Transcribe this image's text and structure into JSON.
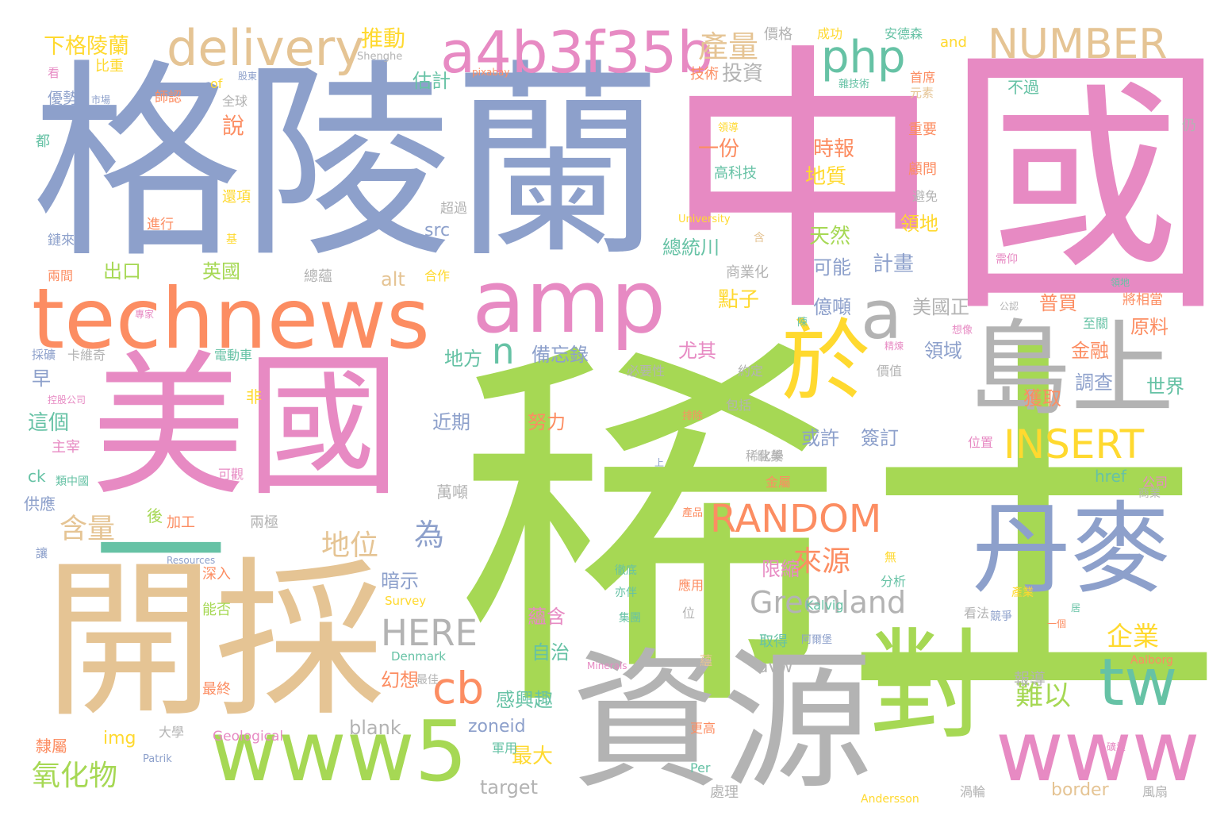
{
  "colors": {
    "green": "#a6d854",
    "pink": "#e78ac3",
    "blue": "#8da0cb",
    "tan": "#e5c494",
    "orange": "#fc8d62",
    "grey": "#b3b3b3",
    "teal": "#66c2a5",
    "yellow": "#ffd92f"
  },
  "words": [
    {
      "t": "稀土",
      "c": "green"
    },
    {
      "t": "中國",
      "c": "pink"
    },
    {
      "t": "格陵蘭",
      "c": "blue"
    },
    {
      "t": "美國",
      "c": "pink"
    },
    {
      "t": "開採",
      "c": "tan"
    },
    {
      "t": "資源",
      "c": "grey"
    },
    {
      "t": "對",
      "c": "green"
    },
    {
      "t": "島上",
      "c": "grey"
    },
    {
      "t": "丹麥",
      "c": "blue"
    },
    {
      "t": "technews",
      "c": "orange"
    },
    {
      "t": "amp",
      "c": "pink"
    },
    {
      "t": "www5",
      "c": "green"
    },
    {
      "t": "www",
      "c": "pink"
    },
    {
      "t": "於",
      "c": "yellow"
    },
    {
      "t": "tw",
      "c": "teal"
    },
    {
      "t": "一",
      "c": "teal"
    },
    {
      "t": "a",
      "c": "grey"
    },
    {
      "t": "a4b3f35b",
      "c": "pink"
    },
    {
      "t": "delivery",
      "c": "tan"
    },
    {
      "t": "php",
      "c": "teal"
    },
    {
      "t": "NUMBER",
      "c": "tan"
    },
    {
      "t": "INSERT",
      "c": "yellow"
    },
    {
      "t": "RANDOM",
      "c": "orange"
    },
    {
      "t": "Greenland",
      "c": "grey"
    },
    {
      "t": "HERE",
      "c": "grey"
    },
    {
      "t": "cb",
      "c": "orange"
    },
    {
      "t": "n",
      "c": "teal"
    },
    {
      "t": "產量",
      "c": "tan"
    },
    {
      "t": "氧化物",
      "c": "green"
    },
    {
      "t": "含量",
      "c": "tan"
    },
    {
      "t": "地位",
      "c": "tan"
    },
    {
      "t": "來源",
      "c": "orange"
    },
    {
      "t": "難以",
      "c": "green"
    },
    {
      "t": "企業",
      "c": "yellow"
    },
    {
      "t": "為",
      "c": "blue"
    },
    {
      "t": "下格陵蘭",
      "c": "yellow"
    },
    {
      "t": "推動",
      "c": "yellow"
    },
    {
      "t": "投資",
      "c": "grey"
    },
    {
      "t": "估計",
      "c": "teal"
    },
    {
      "t": "說",
      "c": "orange"
    },
    {
      "t": "一份",
      "c": "orange"
    },
    {
      "t": "時報",
      "c": "orange"
    },
    {
      "t": "地質",
      "c": "yellow"
    },
    {
      "t": "天然",
      "c": "green"
    },
    {
      "t": "計畫",
      "c": "blue"
    },
    {
      "t": "總統川",
      "c": "teal"
    },
    {
      "t": "可能",
      "c": "blue"
    },
    {
      "t": "出口",
      "c": "green"
    },
    {
      "t": "英國",
      "c": "green"
    },
    {
      "t": "點子",
      "c": "yellow"
    },
    {
      "t": "億噸",
      "c": "blue"
    },
    {
      "t": "美國正",
      "c": "grey"
    },
    {
      "t": "普買",
      "c": "orange"
    },
    {
      "t": "原料",
      "c": "orange"
    },
    {
      "t": "領地",
      "c": "yellow"
    },
    {
      "t": "尤其",
      "c": "pink"
    },
    {
      "t": "備忘錄",
      "c": "blue"
    },
    {
      "t": "地方",
      "c": "teal"
    },
    {
      "t": "金融",
      "c": "orange"
    },
    {
      "t": "領域",
      "c": "blue"
    },
    {
      "t": "調查",
      "c": "blue"
    },
    {
      "t": "世界",
      "c": "teal"
    },
    {
      "t": "獲取",
      "c": "orange"
    },
    {
      "t": "簽訂",
      "c": "blue"
    },
    {
      "t": "或許",
      "c": "blue"
    },
    {
      "t": "努力",
      "c": "orange"
    },
    {
      "t": "近期",
      "c": "blue"
    },
    {
      "t": "這個",
      "c": "teal"
    },
    {
      "t": "早",
      "c": "blue"
    },
    {
      "t": "alt",
      "c": "tan"
    },
    {
      "t": "src",
      "c": "blue"
    },
    {
      "t": "限縮",
      "c": "pink"
    },
    {
      "t": "暗示",
      "c": "blue"
    },
    {
      "t": "蘊含",
      "c": "pink"
    },
    {
      "t": "自治",
      "c": "teal"
    },
    {
      "t": "幻想",
      "c": "orange"
    },
    {
      "t": "感興趣",
      "c": "teal"
    },
    {
      "t": "最大",
      "c": "yellow"
    },
    {
      "t": "zoneid",
      "c": "blue"
    },
    {
      "t": "blank",
      "c": "grey"
    },
    {
      "t": "img",
      "c": "yellow"
    },
    {
      "t": "target",
      "c": "grey"
    },
    {
      "t": "avw",
      "c": "grey"
    },
    {
      "t": "border",
      "c": "tan"
    },
    {
      "t": "報導",
      "c": "grey"
    },
    {
      "t": "href",
      "c": "teal"
    },
    {
      "t": "萬噸",
      "c": "grey"
    },
    {
      "t": "供應",
      "c": "blue"
    },
    {
      "t": "ck",
      "c": "teal"
    },
    {
      "t": "後",
      "c": "green"
    },
    {
      "t": "加工",
      "c": "orange"
    },
    {
      "t": "兩極",
      "c": "grey"
    },
    {
      "t": "深入",
      "c": "orange"
    },
    {
      "t": "能否",
      "c": "green"
    },
    {
      "t": "最終",
      "c": "orange"
    },
    {
      "t": "隸屬",
      "c": "orange"
    },
    {
      "t": "大學",
      "c": "grey"
    },
    {
      "t": "處理",
      "c": "grey"
    },
    {
      "t": "總蘊",
      "c": "grey"
    },
    {
      "t": "合作",
      "c": "yellow"
    },
    {
      "t": "電動車",
      "c": "teal"
    },
    {
      "t": "卡維奇",
      "c": "grey"
    },
    {
      "t": "必要性",
      "c": "grey"
    },
    {
      "t": "約定",
      "c": "grey"
    },
    {
      "t": "包括",
      "c": "grey"
    },
    {
      "t": "歐美",
      "c": "grey"
    },
    {
      "t": "稀化學",
      "c": "grey"
    },
    {
      "t": "金屬",
      "c": "orange"
    },
    {
      "t": "位置",
      "c": "pink"
    },
    {
      "t": "公司",
      "c": "pink"
    },
    {
      "t": "分析",
      "c": "teal"
    },
    {
      "t": "應用",
      "c": "orange"
    },
    {
      "t": "看法",
      "c": "grey"
    },
    {
      "t": "競爭",
      "c": "blue"
    },
    {
      "t": "取得",
      "c": "teal"
    },
    {
      "t": "渦輪",
      "c": "grey"
    },
    {
      "t": "風扇",
      "c": "grey"
    },
    {
      "t": "更高",
      "c": "orange"
    },
    {
      "t": "軍用",
      "c": "teal"
    },
    {
      "t": "最佳",
      "c": "grey"
    },
    {
      "t": "價格",
      "c": "grey"
    },
    {
      "t": "成功",
      "c": "yellow"
    },
    {
      "t": "安德森",
      "c": "teal"
    },
    {
      "t": "and",
      "c": "yellow"
    },
    {
      "t": "首席",
      "c": "orange"
    },
    {
      "t": "元素",
      "c": "tan"
    },
    {
      "t": "不過",
      "c": "teal"
    },
    {
      "t": "重要",
      "c": "orange"
    },
    {
      "t": "顧問",
      "c": "orange"
    },
    {
      "t": "避免",
      "c": "grey"
    },
    {
      "t": "高科技",
      "c": "teal"
    },
    {
      "t": "技術",
      "c": "orange"
    },
    {
      "t": "師認",
      "c": "orange"
    },
    {
      "t": "比重",
      "c": "yellow"
    },
    {
      "t": "優勢",
      "c": "blue"
    },
    {
      "t": "都",
      "c": "teal"
    },
    {
      "t": "全球",
      "c": "grey"
    },
    {
      "t": "還項",
      "c": "yellow"
    },
    {
      "t": "進行",
      "c": "orange"
    },
    {
      "t": "鏈來",
      "c": "blue"
    },
    {
      "t": "兩間",
      "c": "orange"
    },
    {
      "t": "主宰",
      "c": "pink"
    },
    {
      "t": "可觀",
      "c": "pink"
    },
    {
      "t": "非",
      "c": "yellow"
    },
    {
      "t": "商業化",
      "c": "grey"
    },
    {
      "t": "將相當",
      "c": "orange"
    },
    {
      "t": "至關",
      "c": "teal"
    },
    {
      "t": "價值",
      "c": "grey"
    },
    {
      "t": "仍",
      "c": "grey"
    },
    {
      "t": "Shenghe",
      "c": "grey"
    },
    {
      "t": "pixabay",
      "c": "orange"
    },
    {
      "t": "University",
      "c": "yellow"
    },
    {
      "t": "Resources",
      "c": "blue"
    },
    {
      "t": "Survey",
      "c": "yellow"
    },
    {
      "t": "Denmark",
      "c": "teal"
    },
    {
      "t": "Minerals",
      "c": "pink"
    },
    {
      "t": "Geological",
      "c": "pink"
    },
    {
      "t": "Kalvig",
      "c": "teal"
    },
    {
      "t": "Aalborg",
      "c": "orange"
    },
    {
      "t": "Patrik",
      "c": "blue"
    },
    {
      "t": "Per",
      "c": "teal"
    },
    {
      "t": "Andersson",
      "c": "yellow"
    },
    {
      "t": "看",
      "c": "pink"
    },
    {
      "t": "of",
      "c": "yellow"
    },
    {
      "t": "基",
      "c": "yellow"
    },
    {
      "t": "含",
      "c": "tan"
    },
    {
      "t": "讓",
      "c": "blue"
    },
    {
      "t": "無",
      "c": "yellow"
    },
    {
      "t": "位",
      "c": "grey"
    },
    {
      "t": "蘊",
      "c": "tan"
    },
    {
      "t": "上",
      "c": "blue"
    },
    {
      "t": "居",
      "c": "teal"
    },
    {
      "t": "一個",
      "c": "orange"
    },
    {
      "t": "產業",
      "c": "yellow"
    },
    {
      "t": "商業",
      "c": "grey"
    },
    {
      "t": "產品",
      "c": "orange"
    },
    {
      "t": "徹底",
      "c": "teal"
    },
    {
      "t": "集團",
      "c": "teal"
    },
    {
      "t": "亦伴",
      "c": "teal"
    },
    {
      "t": "阿爾堡",
      "c": "blue"
    },
    {
      "t": "想像",
      "c": "pink"
    },
    {
      "t": "精煉",
      "c": "pink"
    },
    {
      "t": "領導",
      "c": "yellow"
    },
    {
      "t": "需仰",
      "c": "pink"
    },
    {
      "t": "市場",
      "c": "blue"
    },
    {
      "t": "股東",
      "c": "blue"
    },
    {
      "t": "雜技術",
      "c": "teal"
    },
    {
      "t": "專家",
      "c": "pink"
    },
    {
      "t": "採礦",
      "c": "blue"
    },
    {
      "t": "排除",
      "c": "orange"
    },
    {
      "t": "控股公司",
      "c": "pink"
    },
    {
      "t": "類中國",
      "c": "teal"
    },
    {
      "t": "公認",
      "c": "grey"
    },
    {
      "t": "陳",
      "c": "teal"
    },
    {
      "t": "礦業",
      "c": "pink"
    },
    {
      "t": "超過",
      "c": "grey"
    },
    {
      "t": "領地",
      "c": "teal"
    }
  ]
}
